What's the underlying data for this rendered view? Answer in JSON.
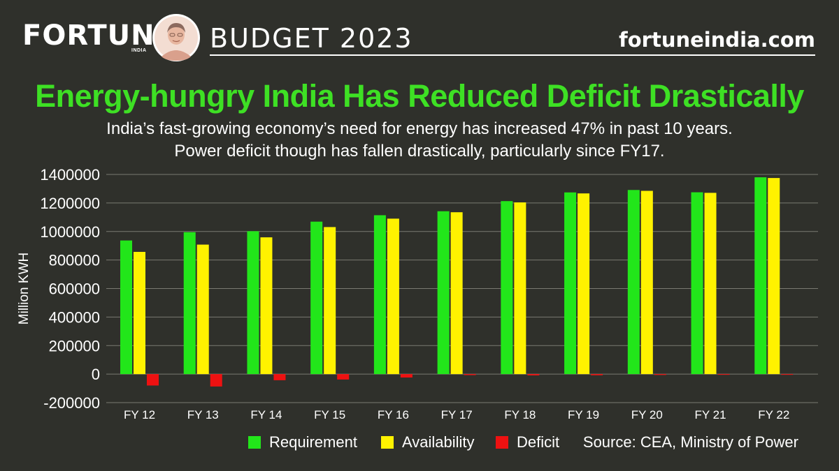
{
  "header": {
    "brand": "FORTUNE",
    "brand_sub": "INDIA",
    "portrait_icon": "portrait-icon",
    "edition": "BUDGET 2023",
    "site": "fortuneindia.com"
  },
  "colors": {
    "background": "#2f302b",
    "title": "#3ee024",
    "requirement": "#22e61a",
    "availability": "#fff200",
    "deficit": "#ee1111",
    "grid": "#7a7a72"
  },
  "chart_data": {
    "type": "bar",
    "title": "Energy-hungry India Has Reduced Deficit Drastically",
    "subtitle": [
      "India’s fast-growing economy’s need for energy has increased 47% in past 10 years.",
      "Power deficit though has fallen drastically, particularly since FY17."
    ],
    "ylabel": "Million KWH",
    "xlabel": "",
    "ylim": [
      -200000,
      1400000
    ],
    "yticks": [
      1400000,
      1200000,
      1000000,
      800000,
      600000,
      400000,
      200000,
      0,
      -200000
    ],
    "ytick_labels": [
      "1400000",
      "1200000",
      "1000000",
      "800000",
      "600000",
      "400000",
      "200000",
      "0",
      "-200000"
    ],
    "grid": true,
    "categories": [
      "FY 12",
      "FY 13",
      "FY 14",
      "FY 15",
      "FY 16",
      "FY 17",
      "FY 18",
      "FY 19",
      "FY 20",
      "FY 21",
      "FY 22"
    ],
    "series": [
      {
        "name": "Requirement",
        "values": [
          937000,
          995000,
          1002000,
          1069000,
          1114000,
          1142000,
          1213000,
          1274000,
          1291000,
          1275000,
          1380000
        ]
      },
      {
        "name": "Availability",
        "values": [
          857000,
          908000,
          959000,
          1031000,
          1090000,
          1135000,
          1204000,
          1267000,
          1285000,
          1271000,
          1375000
        ]
      },
      {
        "name": "Deficit",
        "values": [
          -80000,
          -87000,
          -43000,
          -38000,
          -24000,
          -7000,
          -9000,
          -8000,
          -6000,
          -4000,
          -5000
        ]
      }
    ],
    "legend_position": "bottom",
    "source": "Source: CEA, Ministry of Power"
  }
}
